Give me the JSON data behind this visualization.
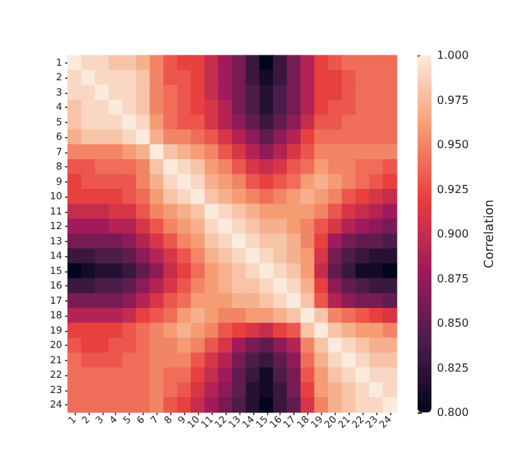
{
  "chart_data": {
    "type": "heatmap",
    "clabel": "Correlation",
    "categories": [
      "1",
      "2",
      "3",
      "4",
      "5",
      "6",
      "7",
      "8",
      "9",
      "10",
      "11",
      "12",
      "13",
      "14",
      "15",
      "16",
      "17",
      "18",
      "19",
      "20",
      "21",
      "22",
      "23",
      "24"
    ],
    "y_categories": [
      "1",
      "2",
      "3",
      "4",
      "5",
      "6",
      "7",
      "8",
      "9",
      "10",
      "11",
      "12",
      "13",
      "14",
      "15",
      "16",
      "17",
      "18",
      "19",
      "20",
      "21",
      "22",
      "23",
      "24"
    ],
    "clim": [
      0.8,
      1.0
    ],
    "cticks": [
      {
        "value": 0.8,
        "label": "0.800"
      },
      {
        "value": 0.825,
        "label": "0.825"
      },
      {
        "value": 0.85,
        "label": "0.850"
      },
      {
        "value": 0.875,
        "label": "0.875"
      },
      {
        "value": 0.9,
        "label": "0.900"
      },
      {
        "value": 0.925,
        "label": "0.925"
      },
      {
        "value": 0.95,
        "label": "0.950"
      },
      {
        "value": 0.975,
        "label": "0.975"
      },
      {
        "value": 1.0,
        "label": "1.000"
      }
    ],
    "cells": [
      [
        1.0,
        0.99,
        0.99,
        0.98,
        0.98,
        0.97,
        0.95,
        0.93,
        0.92,
        0.92,
        0.9,
        0.88,
        0.86,
        0.83,
        0.8,
        0.83,
        0.86,
        0.89,
        0.92,
        0.93,
        0.94,
        0.94,
        0.94,
        0.94
      ],
      [
        0.99,
        1.0,
        0.99,
        0.99,
        0.99,
        0.98,
        0.95,
        0.93,
        0.93,
        0.92,
        0.9,
        0.88,
        0.86,
        0.83,
        0.81,
        0.83,
        0.86,
        0.89,
        0.92,
        0.92,
        0.93,
        0.94,
        0.94,
        0.94
      ],
      [
        0.99,
        0.99,
        1.0,
        0.99,
        0.99,
        0.98,
        0.95,
        0.94,
        0.93,
        0.92,
        0.9,
        0.88,
        0.86,
        0.84,
        0.82,
        0.84,
        0.86,
        0.89,
        0.92,
        0.92,
        0.93,
        0.94,
        0.94,
        0.94
      ],
      [
        0.98,
        0.99,
        0.99,
        1.0,
        0.99,
        0.98,
        0.95,
        0.94,
        0.93,
        0.92,
        0.91,
        0.89,
        0.86,
        0.84,
        0.82,
        0.84,
        0.86,
        0.89,
        0.92,
        0.93,
        0.93,
        0.94,
        0.94,
        0.94
      ],
      [
        0.98,
        0.99,
        0.99,
        0.99,
        1.0,
        0.99,
        0.96,
        0.94,
        0.93,
        0.93,
        0.91,
        0.89,
        0.87,
        0.85,
        0.83,
        0.85,
        0.87,
        0.9,
        0.93,
        0.93,
        0.94,
        0.94,
        0.94,
        0.94
      ],
      [
        0.97,
        0.98,
        0.98,
        0.98,
        0.99,
        1.0,
        0.97,
        0.95,
        0.95,
        0.94,
        0.93,
        0.91,
        0.89,
        0.87,
        0.85,
        0.87,
        0.89,
        0.92,
        0.94,
        0.94,
        0.94,
        0.94,
        0.94,
        0.94
      ],
      [
        0.95,
        0.95,
        0.95,
        0.95,
        0.96,
        0.97,
        1.0,
        0.98,
        0.97,
        0.96,
        0.95,
        0.93,
        0.91,
        0.89,
        0.87,
        0.89,
        0.91,
        0.93,
        0.95,
        0.95,
        0.95,
        0.95,
        0.95,
        0.95
      ],
      [
        0.93,
        0.93,
        0.94,
        0.94,
        0.94,
        0.95,
        0.98,
        1.0,
        0.99,
        0.98,
        0.96,
        0.95,
        0.93,
        0.91,
        0.9,
        0.91,
        0.93,
        0.94,
        0.96,
        0.95,
        0.95,
        0.94,
        0.94,
        0.93
      ],
      [
        0.92,
        0.93,
        0.93,
        0.93,
        0.93,
        0.95,
        0.97,
        0.99,
        1.0,
        0.99,
        0.97,
        0.96,
        0.95,
        0.93,
        0.92,
        0.93,
        0.94,
        0.96,
        0.97,
        0.96,
        0.95,
        0.94,
        0.93,
        0.92
      ],
      [
        0.92,
        0.92,
        0.92,
        0.92,
        0.93,
        0.94,
        0.96,
        0.98,
        0.99,
        1.0,
        0.98,
        0.97,
        0.96,
        0.95,
        0.94,
        0.95,
        0.96,
        0.97,
        0.96,
        0.95,
        0.93,
        0.92,
        0.91,
        0.9
      ],
      [
        0.9,
        0.9,
        0.9,
        0.91,
        0.91,
        0.93,
        0.95,
        0.96,
        0.97,
        0.98,
        1.0,
        0.99,
        0.98,
        0.97,
        0.96,
        0.96,
        0.96,
        0.96,
        0.95,
        0.93,
        0.91,
        0.9,
        0.89,
        0.88
      ],
      [
        0.88,
        0.88,
        0.88,
        0.89,
        0.89,
        0.91,
        0.93,
        0.95,
        0.96,
        0.97,
        0.99,
        1.0,
        0.99,
        0.98,
        0.97,
        0.97,
        0.96,
        0.95,
        0.93,
        0.91,
        0.89,
        0.88,
        0.87,
        0.86
      ],
      [
        0.86,
        0.86,
        0.86,
        0.86,
        0.87,
        0.89,
        0.91,
        0.93,
        0.95,
        0.96,
        0.98,
        0.99,
        1.0,
        0.99,
        0.98,
        0.98,
        0.97,
        0.95,
        0.92,
        0.88,
        0.86,
        0.85,
        0.85,
        0.84
      ],
      [
        0.83,
        0.83,
        0.84,
        0.84,
        0.85,
        0.87,
        0.89,
        0.91,
        0.93,
        0.95,
        0.97,
        0.98,
        0.99,
        1.0,
        0.99,
        0.98,
        0.97,
        0.96,
        0.91,
        0.86,
        0.84,
        0.83,
        0.82,
        0.82
      ],
      [
        0.8,
        0.81,
        0.82,
        0.82,
        0.83,
        0.85,
        0.87,
        0.9,
        0.92,
        0.94,
        0.96,
        0.97,
        0.98,
        0.99,
        1.0,
        0.99,
        0.98,
        0.96,
        0.9,
        0.85,
        0.83,
        0.81,
        0.81,
        0.8
      ],
      [
        0.83,
        0.83,
        0.84,
        0.84,
        0.85,
        0.87,
        0.89,
        0.91,
        0.93,
        0.95,
        0.96,
        0.97,
        0.98,
        0.98,
        0.99,
        1.0,
        0.99,
        0.97,
        0.92,
        0.87,
        0.85,
        0.84,
        0.83,
        0.83
      ],
      [
        0.86,
        0.86,
        0.86,
        0.86,
        0.87,
        0.89,
        0.91,
        0.93,
        0.94,
        0.96,
        0.96,
        0.96,
        0.97,
        0.97,
        0.98,
        0.99,
        1.0,
        0.98,
        0.93,
        0.89,
        0.87,
        0.86,
        0.86,
        0.85
      ],
      [
        0.89,
        0.89,
        0.89,
        0.89,
        0.9,
        0.92,
        0.93,
        0.94,
        0.96,
        0.97,
        0.96,
        0.95,
        0.95,
        0.96,
        0.96,
        0.97,
        0.98,
        1.0,
        0.98,
        0.95,
        0.94,
        0.93,
        0.92,
        0.91
      ],
      [
        0.92,
        0.92,
        0.92,
        0.92,
        0.93,
        0.94,
        0.95,
        0.96,
        0.97,
        0.96,
        0.95,
        0.93,
        0.92,
        0.91,
        0.9,
        0.92,
        0.93,
        0.98,
        1.0,
        0.98,
        0.97,
        0.96,
        0.96,
        0.95
      ],
      [
        0.93,
        0.92,
        0.92,
        0.93,
        0.93,
        0.94,
        0.95,
        0.95,
        0.96,
        0.95,
        0.93,
        0.91,
        0.88,
        0.86,
        0.85,
        0.87,
        0.89,
        0.95,
        0.98,
        1.0,
        0.99,
        0.98,
        0.97,
        0.97
      ],
      [
        0.94,
        0.93,
        0.93,
        0.93,
        0.94,
        0.94,
        0.95,
        0.95,
        0.95,
        0.93,
        0.91,
        0.89,
        0.86,
        0.84,
        0.83,
        0.85,
        0.87,
        0.94,
        0.97,
        0.99,
        1.0,
        0.99,
        0.98,
        0.98
      ],
      [
        0.94,
        0.94,
        0.94,
        0.94,
        0.94,
        0.94,
        0.95,
        0.94,
        0.94,
        0.92,
        0.9,
        0.88,
        0.85,
        0.83,
        0.81,
        0.84,
        0.86,
        0.93,
        0.96,
        0.98,
        0.99,
        1.0,
        0.99,
        0.99
      ],
      [
        0.94,
        0.94,
        0.94,
        0.94,
        0.94,
        0.94,
        0.95,
        0.94,
        0.93,
        0.91,
        0.89,
        0.87,
        0.85,
        0.82,
        0.81,
        0.83,
        0.86,
        0.92,
        0.96,
        0.97,
        0.98,
        0.99,
        1.0,
        0.99
      ],
      [
        0.94,
        0.94,
        0.94,
        0.94,
        0.94,
        0.94,
        0.95,
        0.93,
        0.92,
        0.9,
        0.88,
        0.86,
        0.84,
        0.82,
        0.8,
        0.83,
        0.85,
        0.91,
        0.95,
        0.97,
        0.98,
        0.99,
        0.99,
        1.0
      ]
    ]
  }
}
